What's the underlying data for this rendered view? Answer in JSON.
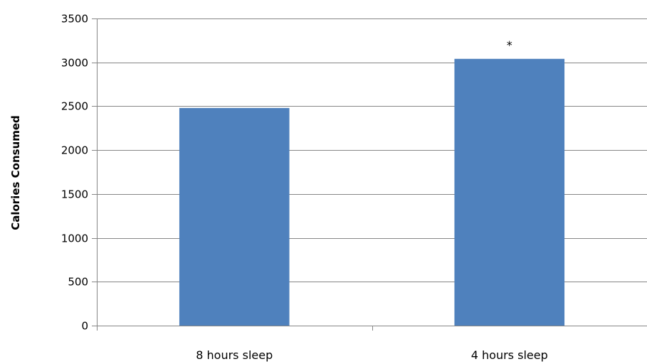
{
  "chart_data": {
    "type": "bar",
    "categories": [
      "8 hours sleep",
      "4 hours sleep"
    ],
    "series": [
      {
        "values": [
          2480,
          3040
        ],
        "color": "#4F81BD"
      }
    ],
    "ylabel": "Calories Consumed",
    "xlabel": "",
    "ylim": [
      0,
      3500
    ],
    "yticks": [
      0,
      500,
      1000,
      1500,
      2000,
      2500,
      3000,
      3500
    ],
    "ytick_labels": [
      "0",
      "500",
      "1000",
      "1500",
      "2000",
      "2500",
      "3000",
      "3500"
    ],
    "grid": true,
    "annotations": [
      {
        "category": "4 hours sleep",
        "text": "*"
      }
    ]
  }
}
